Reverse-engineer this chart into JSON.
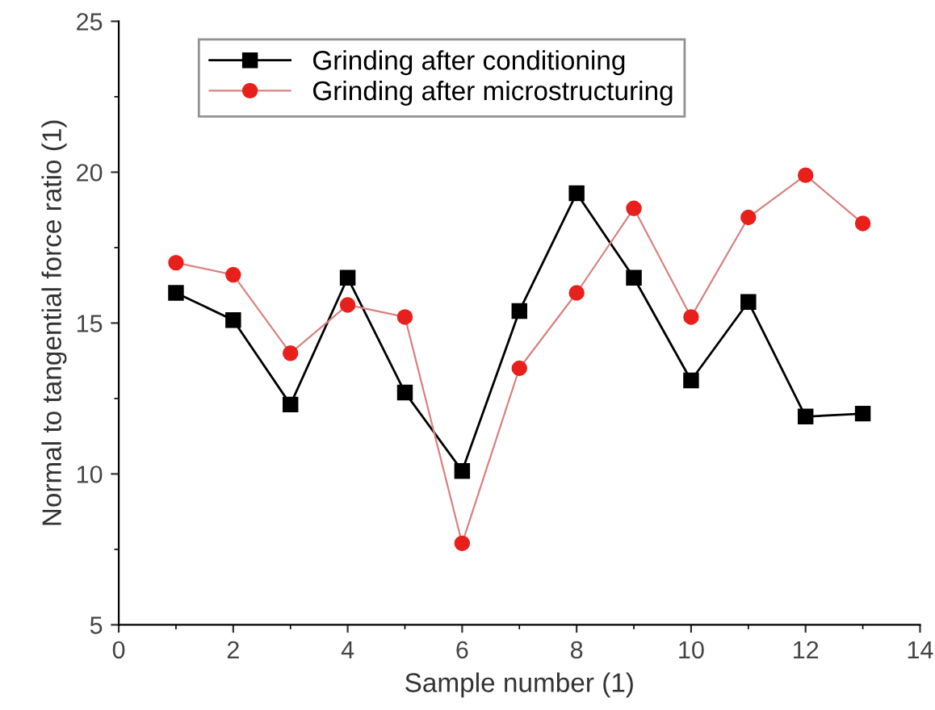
{
  "chart_data": {
    "type": "line",
    "xlabel": "Sample number (1)",
    "ylabel": "Normal to tangential force ratio (1)",
    "x": [
      1,
      2,
      3,
      4,
      5,
      6,
      7,
      8,
      9,
      10,
      11,
      12,
      13
    ],
    "series": [
      {
        "name": "Grinding after conditioning",
        "color": "#000000",
        "marker": "square",
        "values": [
          16.0,
          15.1,
          12.3,
          16.5,
          12.7,
          10.1,
          15.4,
          19.3,
          16.5,
          13.1,
          15.7,
          11.9,
          12.0
        ]
      },
      {
        "name": "Grinding after microstructuring",
        "color": "#e8201c",
        "marker": "circle",
        "values": [
          17.0,
          16.6,
          14.0,
          15.6,
          15.2,
          7.7,
          13.5,
          16.0,
          18.8,
          15.2,
          18.5,
          19.9,
          18.3
        ]
      }
    ],
    "xlim": [
      0,
      14
    ],
    "xticks": [
      0,
      2,
      4,
      6,
      8,
      10,
      12,
      14
    ],
    "ylim": [
      5,
      25
    ],
    "yticks": [
      5,
      10,
      15,
      20,
      25
    ],
    "grid": false,
    "legend": "top left",
    "line_style": "solid"
  }
}
